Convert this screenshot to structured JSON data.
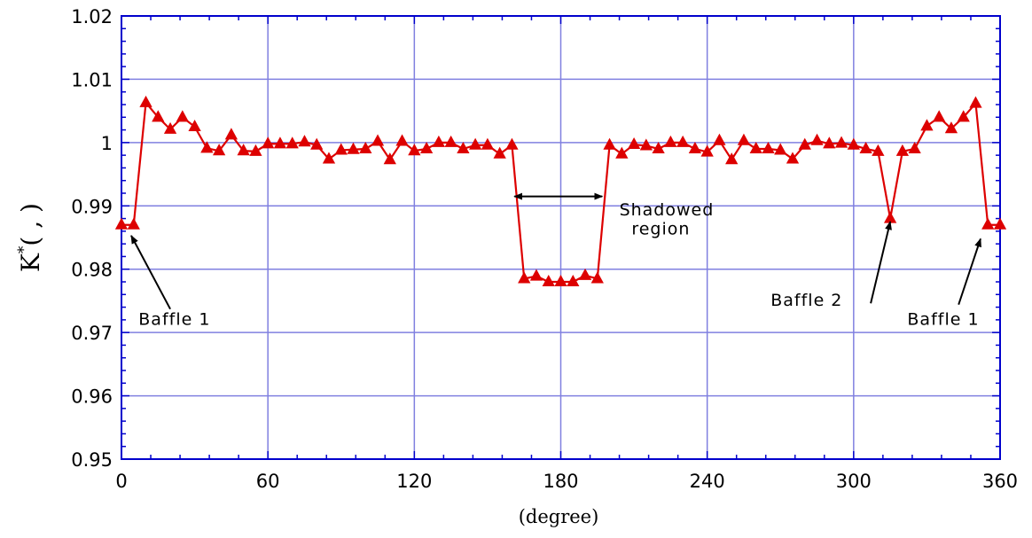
{
  "chart_data": {
    "type": "line",
    "xlabel": "(degree)",
    "ylabel": "K*( , )",
    "ylabel_parts": {
      "main": "K",
      "sup": "*",
      "rest": "( , )"
    },
    "xlim": [
      0,
      360
    ],
    "ylim": [
      0.95,
      1.02
    ],
    "xticks": [
      0,
      60,
      120,
      180,
      240,
      300,
      360
    ],
    "xtick_labels": [
      "0",
      "60",
      "120",
      "180",
      "240",
      "300",
      "360"
    ],
    "yticks": [
      0.95,
      0.96,
      0.97,
      0.98,
      0.99,
      1.0,
      1.01,
      1.02
    ],
    "ytick_labels": [
      "0.95",
      "0.96",
      "0.97",
      "0.98",
      "0.99",
      "1",
      "1.01",
      "1.02"
    ],
    "grid": true,
    "colors": {
      "series": "#dd0000",
      "grid": "#8080e0",
      "axis": "#0000cc"
    },
    "series": [
      {
        "marker": "triangle",
        "x": [
          0,
          5,
          10,
          15,
          20,
          25,
          30,
          35,
          40,
          45,
          50,
          55,
          60,
          65,
          70,
          75,
          80,
          85,
          90,
          95,
          100,
          105,
          110,
          115,
          120,
          125,
          130,
          135,
          140,
          145,
          150,
          155,
          160,
          165,
          170,
          175,
          180,
          185,
          190,
          195,
          200,
          205,
          210,
          215,
          220,
          225,
          230,
          235,
          240,
          245,
          250,
          255,
          260,
          265,
          270,
          275,
          280,
          285,
          290,
          295,
          300,
          305,
          310,
          315,
          320,
          325,
          330,
          335,
          340,
          345,
          350,
          355,
          360
        ],
        "y": [
          0.987,
          0.987,
          1.0063,
          1.004,
          1.0021,
          1.004,
          1.0025,
          0.9991,
          0.9987,
          1.0012,
          0.9987,
          0.9986,
          0.9998,
          0.9998,
          0.9998,
          1.0001,
          0.9996,
          0.9974,
          0.9988,
          0.9989,
          0.999,
          1.0002,
          0.9973,
          1.0002,
          0.9987,
          0.999,
          1.0,
          1.0,
          0.999,
          0.9996,
          0.9996,
          0.9982,
          0.9996,
          0.9785,
          0.9789,
          0.978,
          0.978,
          0.978,
          0.979,
          0.9785,
          0.9996,
          0.9982,
          0.9997,
          0.9995,
          0.999,
          1.0,
          1.0,
          0.999,
          0.9985,
          1.0003,
          0.9973,
          1.0003,
          0.999,
          0.999,
          0.9988,
          0.9974,
          0.9996,
          1.0003,
          0.9998,
          0.9999,
          0.9996,
          0.999,
          0.9986,
          0.988,
          0.9986,
          0.999,
          1.0026,
          1.004,
          1.0022,
          1.004,
          1.0062,
          0.987,
          0.987
        ]
      }
    ],
    "annotations": [
      {
        "text": "Shadowed",
        "x": 204,
        "y": 0.9885
      },
      {
        "text": "region",
        "x": 209,
        "y": 0.9855
      },
      {
        "text": "Baffle 1",
        "x": 7,
        "y": 0.9712
      },
      {
        "text": "Baffle 2",
        "x": 266,
        "y": 0.9742
      },
      {
        "text": "Baffle 1",
        "x": 322,
        "y": 0.9712
      }
    ],
    "arrows": [
      {
        "from": [
          20,
          0.9737
        ],
        "to": [
          4,
          0.9853
        ],
        "heads": "end"
      },
      {
        "from": [
          307,
          0.9746
        ],
        "to": [
          315,
          0.9875
        ],
        "heads": "end"
      },
      {
        "from": [
          343,
          0.9744
        ],
        "to": [
          352,
          0.9848
        ],
        "heads": "end"
      },
      {
        "from": [
          161,
          0.9915
        ],
        "to": [
          197,
          0.9915
        ],
        "heads": "both"
      }
    ]
  }
}
